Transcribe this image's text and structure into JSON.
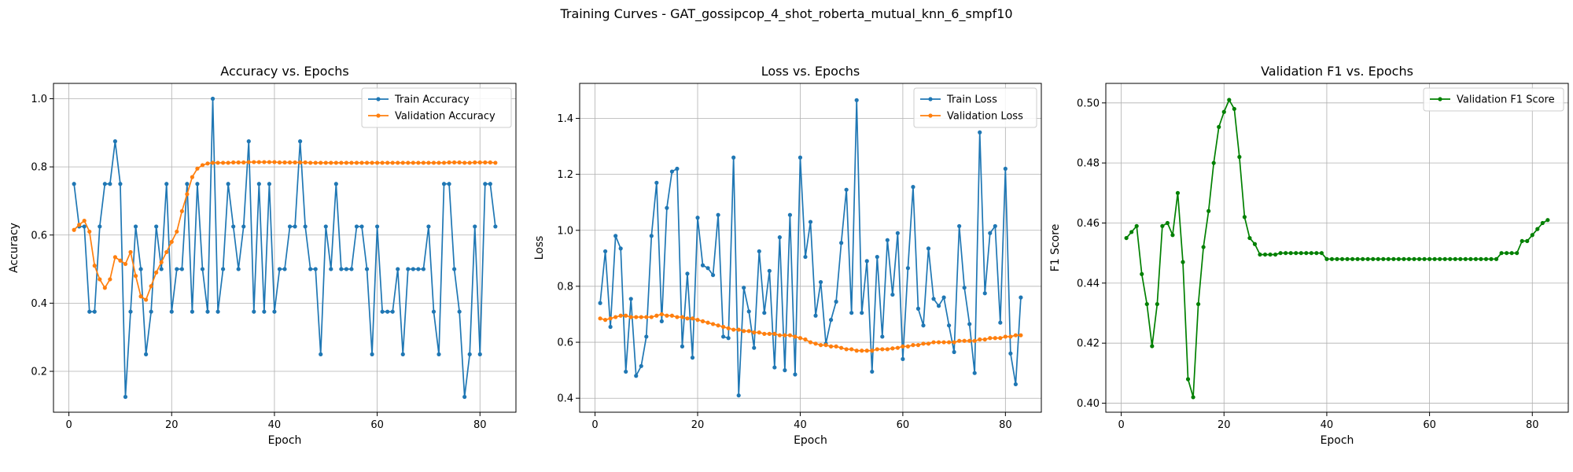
{
  "suptitle": "Training Curves - GAT_gossipcop_4_shot_roberta_mutual_knn_6_smpf10",
  "colors": {
    "train": "#1f77b4",
    "val": "#ff7f0e",
    "f1": "#008000",
    "grid": "#b0b0b0"
  },
  "chart_data": [
    {
      "type": "line",
      "title": "Accuracy vs. Epochs",
      "xlabel": "Epoch",
      "ylabel": "Accuracy",
      "xlim": [
        -3,
        87
      ],
      "ylim": [
        0.08,
        1.045
      ],
      "xticks": [
        0,
        20,
        40,
        60,
        80
      ],
      "yticks": [
        0.2,
        0.4,
        0.6,
        0.8,
        1.0
      ],
      "ytick_labels": [
        "0.2",
        "0.4",
        "0.6",
        "0.8",
        "1.0"
      ],
      "grid": true,
      "legend": "upper right",
      "x": [
        1,
        2,
        3,
        4,
        5,
        6,
        7,
        8,
        9,
        10,
        11,
        12,
        13,
        14,
        15,
        16,
        17,
        18,
        19,
        20,
        21,
        22,
        23,
        24,
        25,
        26,
        27,
        28,
        29,
        30,
        31,
        32,
        33,
        34,
        35,
        36,
        37,
        38,
        39,
        40,
        41,
        42,
        43,
        44,
        45,
        46,
        47,
        48,
        49,
        50,
        51,
        52,
        53,
        54,
        55,
        56,
        57,
        58,
        59,
        60,
        61,
        62,
        63,
        64,
        65,
        66,
        67,
        68,
        69,
        70,
        71,
        72,
        73,
        74,
        75,
        76,
        77,
        78,
        79,
        80,
        81,
        82,
        83
      ],
      "series": [
        {
          "name": "Train Accuracy",
          "color": "#1f77b4",
          "values": [
            0.75,
            0.625,
            0.625,
            0.375,
            0.375,
            0.625,
            0.75,
            0.75,
            0.875,
            0.75,
            0.125,
            0.375,
            0.625,
            0.5,
            0.25,
            0.375,
            0.625,
            0.5,
            0.75,
            0.375,
            0.5,
            0.5,
            0.75,
            0.375,
            0.75,
            0.5,
            0.375,
            1.0,
            0.375,
            0.5,
            0.75,
            0.625,
            0.5,
            0.625,
            0.875,
            0.375,
            0.75,
            0.375,
            0.75,
            0.375,
            0.5,
            0.5,
            0.625,
            0.625,
            0.875,
            0.625,
            0.5,
            0.5,
            0.25,
            0.625,
            0.5,
            0.75,
            0.5,
            0.5,
            0.5,
            0.625,
            0.625,
            0.5,
            0.25,
            0.625,
            0.375,
            0.375,
            0.375,
            0.5,
            0.25,
            0.5,
            0.5,
            0.5,
            0.5,
            0.625,
            0.375,
            0.25,
            0.75,
            0.75,
            0.5,
            0.375,
            0.125,
            0.25,
            0.625,
            0.25,
            0.75,
            0.75,
            0.625
          ]
        },
        {
          "name": "Validation Accuracy",
          "color": "#ff7f0e",
          "values": [
            0.615,
            0.63,
            0.642,
            0.61,
            0.51,
            0.47,
            0.445,
            0.47,
            0.535,
            0.525,
            0.515,
            0.55,
            0.48,
            0.42,
            0.41,
            0.45,
            0.49,
            0.52,
            0.55,
            0.58,
            0.61,
            0.67,
            0.72,
            0.77,
            0.795,
            0.805,
            0.81,
            0.812,
            0.812,
            0.812,
            0.812,
            0.813,
            0.813,
            0.813,
            0.814,
            0.814,
            0.814,
            0.814,
            0.814,
            0.814,
            0.813,
            0.813,
            0.813,
            0.813,
            0.813,
            0.813,
            0.812,
            0.812,
            0.812,
            0.812,
            0.812,
            0.812,
            0.812,
            0.812,
            0.812,
            0.812,
            0.812,
            0.812,
            0.812,
            0.812,
            0.812,
            0.812,
            0.812,
            0.812,
            0.812,
            0.812,
            0.812,
            0.812,
            0.812,
            0.812,
            0.812,
            0.812,
            0.812,
            0.813,
            0.813,
            0.813,
            0.812,
            0.812,
            0.813,
            0.813,
            0.813,
            0.813,
            0.812
          ]
        }
      ]
    },
    {
      "type": "line",
      "title": "Loss vs. Epochs",
      "xlabel": "Epoch",
      "ylabel": "Loss",
      "xlim": [
        -3,
        87
      ],
      "ylim": [
        0.35,
        1.525
      ],
      "xticks": [
        0,
        20,
        40,
        60,
        80
      ],
      "yticks": [
        0.4,
        0.6,
        0.8,
        1.0,
        1.2,
        1.4
      ],
      "ytick_labels": [
        "0.4",
        "0.6",
        "0.8",
        "1.0",
        "1.2",
        "1.4"
      ],
      "grid": true,
      "legend": "upper right",
      "x": [
        1,
        2,
        3,
        4,
        5,
        6,
        7,
        8,
        9,
        10,
        11,
        12,
        13,
        14,
        15,
        16,
        17,
        18,
        19,
        20,
        21,
        22,
        23,
        24,
        25,
        26,
        27,
        28,
        29,
        30,
        31,
        32,
        33,
        34,
        35,
        36,
        37,
        38,
        39,
        40,
        41,
        42,
        43,
        44,
        45,
        46,
        47,
        48,
        49,
        50,
        51,
        52,
        53,
        54,
        55,
        56,
        57,
        58,
        59,
        60,
        61,
        62,
        63,
        64,
        65,
        66,
        67,
        68,
        69,
        70,
        71,
        72,
        73,
        74,
        75,
        76,
        77,
        78,
        79,
        80,
        81,
        82,
        83
      ],
      "series": [
        {
          "name": "Train Loss",
          "color": "#1f77b4",
          "values": [
            0.74,
            0.925,
            0.655,
            0.98,
            0.935,
            0.495,
            0.755,
            0.48,
            0.515,
            0.62,
            0.98,
            1.17,
            0.675,
            1.08,
            1.21,
            1.22,
            0.585,
            0.845,
            0.545,
            1.045,
            0.875,
            0.865,
            0.84,
            1.055,
            0.62,
            0.615,
            1.26,
            0.41,
            0.795,
            0.71,
            0.58,
            0.925,
            0.705,
            0.855,
            0.51,
            0.975,
            0.5,
            1.055,
            0.485,
            1.26,
            0.905,
            1.03,
            0.695,
            0.815,
            0.595,
            0.68,
            0.745,
            0.955,
            1.145,
            0.705,
            1.465,
            0.705,
            0.89,
            0.495,
            0.905,
            0.62,
            0.965,
            0.77,
            0.99,
            0.54,
            0.865,
            1.155,
            0.72,
            0.66,
            0.935,
            0.755,
            0.73,
            0.76,
            0.66,
            0.565,
            1.015,
            0.795,
            0.665,
            0.49,
            1.35,
            0.775,
            0.99,
            1.015,
            0.67,
            1.22,
            0.56,
            0.45,
            0.76
          ]
        },
        {
          "name": "Validation Loss",
          "color": "#ff7f0e",
          "values": [
            0.685,
            0.68,
            0.685,
            0.69,
            0.695,
            0.695,
            0.69,
            0.69,
            0.69,
            0.69,
            0.69,
            0.695,
            0.7,
            0.695,
            0.695,
            0.69,
            0.69,
            0.685,
            0.685,
            0.68,
            0.675,
            0.67,
            0.665,
            0.66,
            0.655,
            0.65,
            0.645,
            0.645,
            0.64,
            0.64,
            0.635,
            0.635,
            0.63,
            0.63,
            0.63,
            0.625,
            0.625,
            0.625,
            0.62,
            0.615,
            0.61,
            0.6,
            0.595,
            0.59,
            0.59,
            0.585,
            0.585,
            0.58,
            0.575,
            0.575,
            0.57,
            0.57,
            0.57,
            0.57,
            0.575,
            0.575,
            0.575,
            0.578,
            0.58,
            0.585,
            0.585,
            0.59,
            0.59,
            0.595,
            0.595,
            0.6,
            0.6,
            0.6,
            0.6,
            0.6,
            0.605,
            0.605,
            0.605,
            0.605,
            0.61,
            0.61,
            0.615,
            0.615,
            0.615,
            0.62,
            0.62,
            0.625,
            0.625
          ]
        }
      ]
    },
    {
      "type": "line",
      "title": "Validation F1 vs. Epochs",
      "xlabel": "Epoch",
      "ylabel": "F1 Score",
      "xlim": [
        -3,
        87
      ],
      "ylim": [
        0.397,
        0.5065
      ],
      "xticks": [
        0,
        20,
        40,
        60,
        80
      ],
      "yticks": [
        0.4,
        0.42,
        0.44,
        0.46,
        0.48,
        0.5
      ],
      "ytick_labels": [
        "0.40",
        "0.42",
        "0.44",
        "0.46",
        "0.48",
        "0.50"
      ],
      "grid": true,
      "legend": "upper right",
      "x": [
        1,
        2,
        3,
        4,
        5,
        6,
        7,
        8,
        9,
        10,
        11,
        12,
        13,
        14,
        15,
        16,
        17,
        18,
        19,
        20,
        21,
        22,
        23,
        24,
        25,
        26,
        27,
        28,
        29,
        30,
        31,
        32,
        33,
        34,
        35,
        36,
        37,
        38,
        39,
        40,
        41,
        42,
        43,
        44,
        45,
        46,
        47,
        48,
        49,
        50,
        51,
        52,
        53,
        54,
        55,
        56,
        57,
        58,
        59,
        60,
        61,
        62,
        63,
        64,
        65,
        66,
        67,
        68,
        69,
        70,
        71,
        72,
        73,
        74,
        75,
        76,
        77,
        78,
        79,
        80,
        81,
        82,
        83
      ],
      "series": [
        {
          "name": "Validation F1 Score",
          "color": "#008000",
          "values": [
            0.455,
            0.457,
            0.459,
            0.443,
            0.433,
            0.419,
            0.433,
            0.459,
            0.46,
            0.456,
            0.47,
            0.447,
            0.408,
            0.402,
            0.433,
            0.452,
            0.464,
            0.48,
            0.492,
            0.497,
            0.501,
            0.498,
            0.482,
            0.462,
            0.455,
            0.453,
            0.4495,
            0.4495,
            0.4495,
            0.4495,
            0.45,
            0.45,
            0.45,
            0.45,
            0.45,
            0.45,
            0.45,
            0.45,
            0.45,
            0.448,
            0.448,
            0.448,
            0.448,
            0.448,
            0.448,
            0.448,
            0.448,
            0.448,
            0.448,
            0.448,
            0.448,
            0.448,
            0.448,
            0.448,
            0.448,
            0.448,
            0.448,
            0.448,
            0.448,
            0.448,
            0.448,
            0.448,
            0.448,
            0.448,
            0.448,
            0.448,
            0.448,
            0.448,
            0.448,
            0.448,
            0.448,
            0.448,
            0.448,
            0.45,
            0.45,
            0.45,
            0.45,
            0.454,
            0.454,
            0.456,
            0.458,
            0.46,
            0.461
          ]
        }
      ]
    }
  ]
}
